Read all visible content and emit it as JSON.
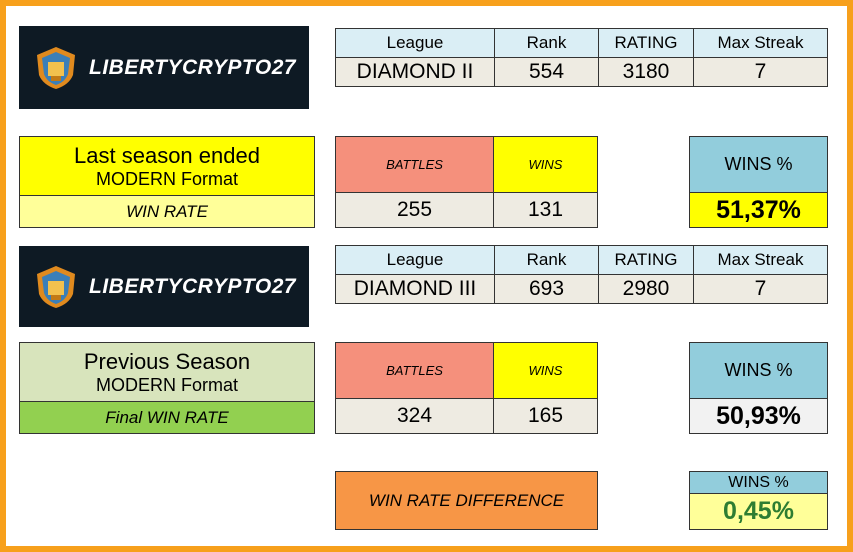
{
  "brand": {
    "name": "LIBERTYCRYPTO27"
  },
  "headers": {
    "league": "League",
    "rank": "Rank",
    "rating": "RATING",
    "max_streak": "Max Streak"
  },
  "current": {
    "league": "DIAMOND II",
    "rank": "554",
    "rating": "3180",
    "max_streak": "7",
    "title": "Last season ended",
    "format": "MODERN Format",
    "rate_label": "WIN RATE",
    "battles_label": "BATTLES",
    "wins_label": "WINS",
    "battles": "255",
    "wins": "131",
    "wins_pct_label": "WINS %",
    "wins_pct": "51,37%"
  },
  "previous": {
    "league": "DIAMOND III",
    "rank": "693",
    "rating": "2980",
    "max_streak": "7",
    "title": "Previous Season",
    "format": "MODERN Format",
    "rate_label": "Final WIN RATE",
    "battles_label": "BATTLES",
    "wins_label": "WINS",
    "battles": "324",
    "wins": "165",
    "wins_pct_label": "WINS %",
    "wins_pct": "50,93%"
  },
  "difference": {
    "label": "WIN RATE DIFFERENCE",
    "wins_pct_label": "WINS %",
    "value": "0,45%"
  },
  "colors": {
    "frame": "#f7a01c",
    "battles_bg": "#f5907c",
    "wins_bg": "#ffff00",
    "current_pct_bg": "#ffff00",
    "header_blue": "#92cddc",
    "prev_title_bg": "#d8e4bc",
    "prev_rate_bg": "#92d050",
    "diff_bg": "#f79646",
    "diff_value_bg": "#ffff99",
    "diff_value_text": "#2e7d32"
  }
}
